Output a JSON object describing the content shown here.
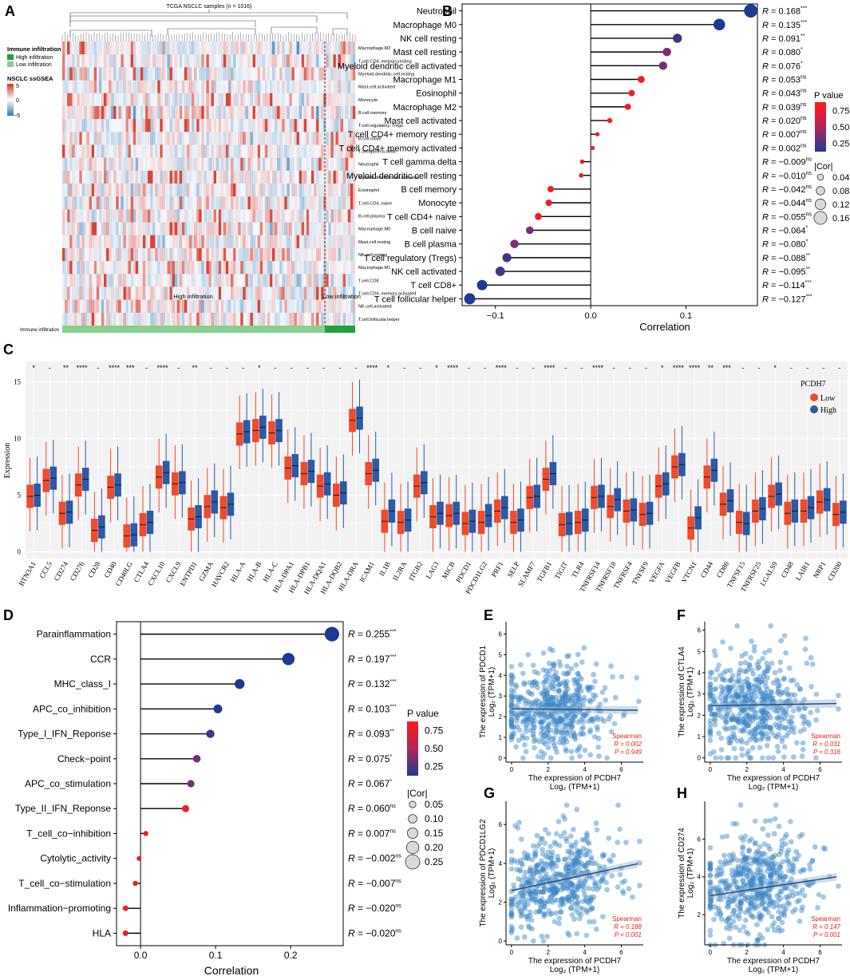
{
  "panel_labels": [
    "A",
    "B",
    "C",
    "D",
    "E",
    "F",
    "G",
    "H"
  ],
  "colors": {
    "low_blue": "#2f6fb7",
    "high_red": "#e8462f",
    "heat_high": "#d7301f",
    "heat_low": "#2b7bba",
    "bar_high": "#88cf8f",
    "bar_low": "#1ea23c",
    "box_low": "#ef4b2c",
    "box_high": "#2b5aa6",
    "pval_high": "#ff1a1a",
    "pval_low": "#1f3a93",
    "scatter": "#3a86c8",
    "fitline": "#1a4d86"
  },
  "chart_data": [
    {
      "panel": "A",
      "type": "heatmap",
      "title": "TCGA NSCLC samples (n = 1016)",
      "legend_group_title": "Immune infiltration",
      "legend_groups": [
        "High infiltration",
        "Low infiltration"
      ],
      "legend_scale_title": "NSCLC ssGSEA",
      "scale_ticks": [
        "5",
        "0",
        "−5"
      ],
      "bottom_bar_label": "Immune infiltration",
      "group_labels": [
        "High infiltration",
        "Low infiltration"
      ],
      "rows": [
        "Macrophage.M2",
        "T.cell.CD4..memory.resting",
        "Myeloid.dendritic.cell.resting",
        "Mast.cell.activated",
        "Monocyte",
        "B.cell.memory",
        "T.cell.regulatory..Tregs.",
        "B.cell.naive",
        "T.cell.gamma.delta",
        "Neutrophil",
        "Myeloid.dendritic.cell.activated",
        "Eosinophil",
        "T.cell.CD4..naive",
        "B.cell.plasma",
        "Macrophage.M0",
        "Mast.cell.resting",
        "NK.cell.resting",
        "Macrophage.M1",
        "T.cell.CD8.",
        "T.cell.CD4..memory.activated",
        "NK.cell.activated",
        "T.cell.follicular.helper"
      ]
    },
    {
      "panel": "B",
      "type": "scatter",
      "subtype": "lollipop",
      "xlabel": "Correlation",
      "xticks": [
        "−0.1",
        "0.0",
        "0.1"
      ],
      "xlim": [
        -0.135,
        0.175
      ],
      "pvalue_legend": {
        "title": "P value",
        "ticks": [
          "0.75",
          "0.50",
          "0.25"
        ]
      },
      "size_legend": {
        "title": "|Cor|",
        "ticks": [
          "0.04",
          "0.08",
          "0.12",
          "0.16"
        ]
      },
      "categories": [
        "Neutrophil",
        "Macrophage M0",
        "NK cell resting",
        "Mast cell resting",
        "Myeloid dendritic cell activated",
        "Macrophage M1",
        "Eosinophil",
        "Macrophage M2",
        "Mast cell activated",
        "T cell CD4+ memory resting",
        "T cell CD4+ memory activated",
        "T cell gamma delta",
        "Myeloid dendritic cell resting",
        "B cell memory",
        "Monocyte",
        "T cell CD4+ naive",
        "B cell naive",
        "B cell plasma",
        "T cell regulatory (Tregs)",
        "NK cell activated",
        "T cell CD8+",
        "T cell follicular helper"
      ],
      "values": [
        0.168,
        0.135,
        0.091,
        0.08,
        0.076,
        0.053,
        0.043,
        0.039,
        0.02,
        0.007,
        0.002,
        -0.009,
        -0.01,
        -0.042,
        -0.044,
        -0.055,
        -0.064,
        -0.08,
        -0.088,
        -0.095,
        -0.114,
        -0.127
      ],
      "r_labels": [
        "0.168",
        "0.135",
        "0.091",
        "0.080",
        "0.076",
        "0.053",
        "0.043",
        "0.039",
        "0.020",
        "0.007",
        "0.002",
        "−0.009",
        "−0.010",
        "−0.042",
        "−0.044",
        "−0.055",
        "−0.064",
        "−0.080",
        "−0.088",
        "−0.095",
        "−0.114",
        "−0.127"
      ],
      "sig": [
        "***",
        "***",
        "**",
        "*",
        "*",
        "ns",
        "ns",
        "ns",
        "ns",
        "ns",
        "ns",
        "ns",
        "ns",
        "ns",
        "ns",
        "ns",
        "*",
        "*",
        "**",
        "**",
        "***",
        "***"
      ]
    },
    {
      "panel": "C",
      "type": "bar",
      "subtype": "boxplot",
      "ylabel": "Expression",
      "ylim": [
        -0.6,
        16.8
      ],
      "yticks": [
        "0",
        "5",
        "10",
        "15"
      ],
      "legend_title": "PCDH7",
      "legend": [
        "Low",
        "High"
      ],
      "categories": [
        "BTN3A1",
        "CCL5",
        "CD274",
        "CD276",
        "CD28",
        "CD40",
        "CD40LG",
        "CTLA4",
        "CXCL10",
        "CXCL9",
        "ENTPD1",
        "GZMA",
        "HAVCR2",
        "HLA-A",
        "HLA-B",
        "HLA-C",
        "HLA-DPA1",
        "HLA-DPB1",
        "HLA-DQA1",
        "HLA-DQB2",
        "HLA-DRA",
        "ICAM1",
        "IL1B",
        "IL2RA",
        "ITGB2",
        "LAG3",
        "MICB",
        "PDCD1",
        "PDCD1LG2",
        "PRF1",
        "SELP",
        "SLAMF7",
        "TGFB1",
        "TIGIT",
        "TLR4",
        "TNFRSF14",
        "TNFRSF18",
        "TNFRSF4",
        "TNFSF9",
        "VEGFA",
        "VEGFB",
        "VTCN1",
        "CD44",
        "CD86",
        "TNFSF15",
        "TNFRSF25",
        "LGALS9",
        "CD48",
        "LAIR1",
        "NRP1",
        "CD200"
      ],
      "sig": [
        "*",
        "-",
        "**",
        "****",
        "-",
        "****",
        "***",
        "-",
        "****",
        "-",
        "**",
        "-",
        "-",
        "-",
        "*",
        "-",
        "-",
        "-",
        "-",
        "-",
        "-",
        "****",
        "*",
        "-",
        "-",
        "*",
        "****",
        "-",
        "-",
        "****",
        "-",
        "-",
        "****",
        "-",
        "-",
        "****",
        "-",
        "-",
        "-",
        "*",
        "****",
        "****",
        "**",
        "***",
        "-",
        "-",
        "*",
        "-",
        "-",
        "-",
        "-"
      ],
      "series": [
        {
          "name": "Low",
          "values": [
            4.9,
            6.3,
            3.4,
            5.9,
            1.9,
            5.7,
            1.4,
            2.4,
            6.6,
            6.0,
            2.9,
            4.0,
            3.9,
            10.4,
            10.7,
            10.5,
            7.4,
            6.9,
            5.8,
            5.0,
            11.6,
            6.9,
            2.7,
            2.6,
            5.8,
            3.1,
            3.2,
            2.5,
            2.6,
            3.6,
            2.6,
            4.8,
            6.4,
            2.4,
            2.6,
            4.8,
            4.0,
            3.6,
            3.3,
            5.8,
            7.5,
            2.1,
            6.6,
            4.2,
            2.6,
            3.6,
            4.9,
            3.4,
            3.6,
            4.4,
            3.3
          ]
        },
        {
          "name": "High",
          "values": [
            5.0,
            6.5,
            3.5,
            6.4,
            2.2,
            5.9,
            1.5,
            2.6,
            7.0,
            6.1,
            3.1,
            4.4,
            4.2,
            10.6,
            11.0,
            10.7,
            7.6,
            7.1,
            6.0,
            5.2,
            11.8,
            7.2,
            3.6,
            2.8,
            6.1,
            3.4,
            3.4,
            2.7,
            3.2,
            3.9,
            2.8,
            4.9,
            6.9,
            2.5,
            2.8,
            4.9,
            4.6,
            3.7,
            3.4,
            6.0,
            7.7,
            3.0,
            7.2,
            4.5,
            2.5,
            3.8,
            5.1,
            3.6,
            3.9,
            4.6,
            3.5
          ]
        }
      ]
    },
    {
      "panel": "D",
      "type": "scatter",
      "subtype": "lollipop",
      "xlabel": "Correlation",
      "xticks": [
        "0.0",
        "0.1",
        "0.2"
      ],
      "xlim": [
        -0.032,
        0.27
      ],
      "pvalue_legend": {
        "title": "P value",
        "ticks": [
          "0.75",
          "0.50",
          "0.25"
        ]
      },
      "size_legend": {
        "title": "|Cor|",
        "ticks": [
          "0.05",
          "0.10",
          "0.15",
          "0.20",
          "0.25"
        ]
      },
      "categories": [
        "Parainflammation",
        "CCR",
        "MHC_class_I",
        "APC_co_inhibition",
        "Type_I_IFN_Reponse",
        "Check−point",
        "APC_co_stimulation",
        "Type_II_IFN_Reponse",
        "T_cell_co−inhibition",
        "Cytolytic_activity",
        "T_cell_co−stimulation",
        "Inflammation−promoting",
        "HLA"
      ],
      "values": [
        0.255,
        0.197,
        0.132,
        0.103,
        0.093,
        0.075,
        0.067,
        0.06,
        0.007,
        -0.002,
        -0.007,
        -0.02,
        -0.02
      ],
      "r_labels": [
        "0.255",
        "0.197",
        "0.132",
        "0.103",
        "0.093",
        "0.075",
        "0.067",
        "0.060",
        "0.007",
        "−0.002",
        "−0.007",
        "−0.020",
        "−0.020"
      ],
      "sig": [
        "***",
        "***",
        "***",
        "***",
        "**",
        "*",
        "*",
        "ns",
        "ns",
        "ns",
        "ns",
        "ns",
        "ns"
      ]
    },
    {
      "panel": "E",
      "type": "scatter",
      "gene": "PDCD1",
      "ylabel_top": "The expression of PDCD1",
      "ylabel_sub": "Log₂ (TPM+1)",
      "xlabel": "The expression of PCDH7",
      "xlabel_sub": "Log₂ (TPM+1)",
      "xticks": [
        "0",
        "2",
        "4",
        "6"
      ],
      "yticks": [
        "0",
        "1",
        "2",
        "3",
        "4",
        "5",
        "6"
      ],
      "xlim": [
        -0.3,
        7.2
      ],
      "ylim": [
        -0.2,
        6.6
      ],
      "method": "Spearman",
      "r": "R = 0.002",
      "p": "P = 0.949",
      "fit": {
        "intercept": 2.38,
        "slope": -0.01
      },
      "cloud": {
        "x_mean": 2.4,
        "x_sd": 1.5,
        "y_mean": 2.4,
        "y_sd": 1.15
      }
    },
    {
      "panel": "F",
      "type": "scatter",
      "gene": "CTLA4",
      "ylabel_top": "The expression of CTLA4",
      "ylabel_sub": "Log₂ (TPM+1)",
      "xlabel": "The expression of PCDH7",
      "xlabel_sub": "Log₂ (TPM+1)",
      "xticks": [
        "0",
        "2",
        "4",
        "6"
      ],
      "yticks": [
        "0",
        "1",
        "2",
        "3",
        "4",
        "5",
        "6"
      ],
      "xlim": [
        -0.3,
        7.2
      ],
      "ylim": [
        -0.2,
        6.4
      ],
      "method": "Spearman",
      "r": "R = 0.031",
      "p": "P = 0.316",
      "fit": {
        "intercept": 2.45,
        "slope": 0.015
      },
      "cloud": {
        "x_mean": 2.4,
        "x_sd": 1.5,
        "y_mean": 2.45,
        "y_sd": 1.2
      }
    },
    {
      "panel": "G",
      "type": "scatter",
      "gene": "PDCD1LG2",
      "ylabel_top": "The expression of PDCD1LG2",
      "ylabel_sub": "Log₂ (TPM+1)",
      "xlabel": "The expression of PCDH7",
      "xlabel_sub": "Log₂ (TPM+1)",
      "xticks": [
        "0",
        "2",
        "4",
        "6"
      ],
      "yticks": [
        "0",
        "2",
        "4",
        "6"
      ],
      "xlim": [
        -0.3,
        7.2
      ],
      "ylim": [
        -0.2,
        7.2
      ],
      "method": "Spearman",
      "r": "R = 0.188",
      "p": "P < 0.001",
      "fit": {
        "intercept": 2.6,
        "slope": 0.2
      },
      "cloud": {
        "x_mean": 2.4,
        "x_sd": 1.5,
        "y_mean": 3.0,
        "y_sd": 1.2
      }
    },
    {
      "panel": "H",
      "type": "scatter",
      "gene": "CD274",
      "ylabel_top": "The expression of CD274",
      "ylabel_sub": "Log₂ (TPM+1)",
      "xlabel": "The expression of PCDH7",
      "xlabel_sub": "Log₂ (TPM+1)",
      "xticks": [
        "0",
        "2",
        "4",
        "6"
      ],
      "yticks": [
        "2",
        "4",
        "6"
      ],
      "xlim": [
        -0.3,
        7.2
      ],
      "ylim": [
        0.4,
        8.0
      ],
      "method": "Spearman",
      "r": "R = 0.147",
      "p": "P < 0.001",
      "fit": {
        "intercept": 3.0,
        "slope": 0.145
      },
      "cloud": {
        "x_mean": 2.4,
        "x_sd": 1.5,
        "y_mean": 3.5,
        "y_sd": 1.4
      }
    }
  ]
}
